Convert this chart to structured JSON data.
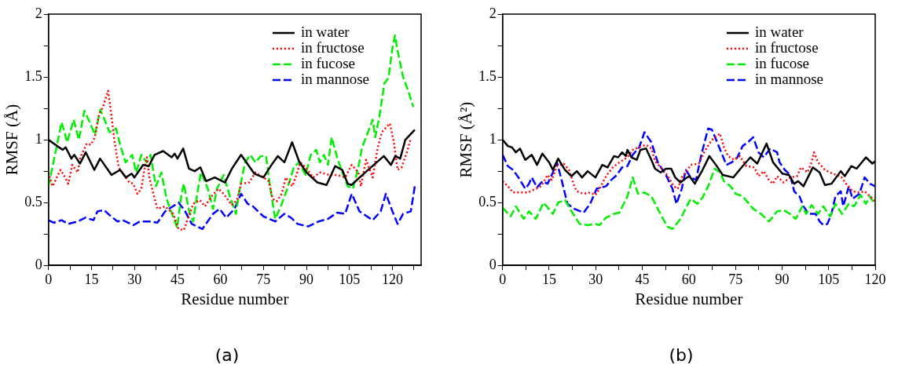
{
  "chart_data": [
    {
      "type": "line",
      "xlabel": "Residue number",
      "ylabel": "RMSF (Å)",
      "annotations": [
        "(a)"
      ],
      "xlim": [
        0,
        130
      ],
      "ylim": [
        0,
        2
      ],
      "xticks": [
        0,
        {
          "value": 7.5,
          "label": null
        },
        15,
        {
          "value": 22.5,
          "label": null
        },
        30,
        {
          "value": 37.5,
          "label": null
        },
        45,
        {
          "value": 52.5,
          "label": null
        },
        60,
        {
          "value": 67.5,
          "label": null
        },
        75,
        {
          "value": 82.5,
          "label": null
        },
        90,
        {
          "value": 97.5,
          "label": null
        },
        105,
        {
          "value": 112.5,
          "label": null
        },
        120,
        {
          "value": 127.5,
          "label": null
        }
      ],
      "yticks": [
        0,
        {
          "value": 0.25,
          "label": null
        },
        0.5,
        {
          "value": 0.75,
          "label": null
        },
        1,
        {
          "value": 1.25,
          "label": null
        },
        1.5,
        {
          "value": 1.75,
          "label": null
        },
        2
      ],
      "grid": false,
      "legend": "top right",
      "marker": "none",
      "series": [
        {
          "name": "in water",
          "color": "#000000",
          "line_style": "solid",
          "x": [
            0,
            3,
            5,
            6,
            8,
            9,
            11,
            13,
            16,
            18,
            22,
            25,
            27,
            29,
            30,
            33,
            35,
            37,
            40,
            43,
            44,
            45,
            47,
            49,
            51,
            53,
            55,
            58,
            61.6,
            64,
            67.2,
            71.8,
            75,
            77.8,
            80,
            82.3,
            85,
            87.4,
            90,
            93.8,
            97,
            100,
            102.5,
            104.4,
            105.7,
            110,
            113.5,
            117,
            119.5,
            121,
            122.7,
            124.5,
            127.8
          ],
          "values": [
            1.0,
            0.95,
            0.92,
            0.94,
            0.85,
            0.88,
            0.81,
            0.9,
            0.76,
            0.85,
            0.72,
            0.76,
            0.7,
            0.73,
            0.7,
            0.8,
            0.79,
            0.88,
            0.91,
            0.86,
            0.89,
            0.85,
            0.93,
            0.77,
            0.75,
            0.78,
            0.67,
            0.7,
            0.66,
            0.77,
            0.88,
            0.73,
            0.7,
            0.8,
            0.87,
            0.82,
            0.98,
            0.83,
            0.74,
            0.66,
            0.64,
            0.79,
            0.76,
            0.65,
            0.64,
            0.73,
            0.8,
            0.87,
            0.8,
            0.87,
            0.85,
            1.0,
            1.08
          ]
        },
        {
          "name": "in fructose",
          "color": "#ff0000",
          "line_style": "dotted",
          "x": [
            0,
            1.4,
            4.2,
            5.6,
            6.9,
            8.3,
            10.2,
            11.1,
            13.4,
            14.8,
            16.2,
            17.6,
            19,
            20.8,
            21.8,
            23.1,
            24.5,
            26.4,
            28.2,
            29.6,
            31,
            32.4,
            33.3,
            34.3,
            35.2,
            36.6,
            38,
            40.7,
            43.5,
            45.4,
            47.2,
            48.6,
            50.5,
            52.8,
            54.6,
            56.9,
            59.3,
            61.1,
            63.9,
            65.8,
            67.2,
            70,
            72.2,
            75,
            76.8,
            78.2,
            79.6,
            81.4,
            82.8,
            85.1,
            86.5,
            87.9,
            89.7,
            92.4,
            94.7,
            98,
            100.7,
            103.5,
            105.8,
            108.1,
            109,
            110.8,
            113.1,
            114.9,
            116.3,
            119.1,
            120.5,
            121.8,
            123.2,
            125,
            126.4
          ],
          "values": [
            0.74,
            0.63,
            0.76,
            0.71,
            0.65,
            0.8,
            0.74,
            0.86,
            0.97,
            0.96,
            1.02,
            1.2,
            1.26,
            1.39,
            1.22,
            0.98,
            0.78,
            0.72,
            0.66,
            0.65,
            0.57,
            0.61,
            0.74,
            0.86,
            0.7,
            0.57,
            0.45,
            0.47,
            0.41,
            0.29,
            0.28,
            0.37,
            0.49,
            0.52,
            0.47,
            0.55,
            0.61,
            0.57,
            0.48,
            0.52,
            0.65,
            0.66,
            0.74,
            0.7,
            0.67,
            0.53,
            0.51,
            0.57,
            0.7,
            0.63,
            0.72,
            0.82,
            0.78,
            0.7,
            0.74,
            0.72,
            0.72,
            0.7,
            0.8,
            0.74,
            0.63,
            0.84,
            0.7,
            0.94,
            1.06,
            1.13,
            0.98,
            0.76,
            0.78,
            0.9,
            1.01
          ]
        },
        {
          "name": "in fucose",
          "color": "#00ee00",
          "line_style": "dashed",
          "x": [
            0,
            1.9,
            4.6,
            6.5,
            8.8,
            10.6,
            12.5,
            14.4,
            16.2,
            18.1,
            19.9,
            21.3,
            23.6,
            25,
            26.9,
            29.2,
            30.6,
            32.4,
            34.3,
            35.6,
            37.5,
            39.4,
            41.2,
            43.1,
            44.9,
            46.3,
            47.2,
            49.1,
            50.5,
            51.9,
            53.2,
            55.6,
            57.4,
            58.8,
            61.1,
            63,
            65.4,
            66.7,
            68.6,
            70.4,
            72.2,
            74.1,
            75.9,
            77.3,
            79.1,
            81.4,
            83.3,
            85.6,
            87.4,
            89.7,
            91.5,
            93.4,
            94.7,
            96.1,
            97.5,
            98.8,
            100.7,
            102.5,
            104.4,
            106.2,
            108.1,
            109.4,
            110.8,
            113.1,
            114,
            115.4,
            117.2,
            118.6,
            120,
            120.9,
            121.8,
            123.7,
            125.5,
            127.3
          ],
          "values": [
            0.63,
            0.84,
            1.14,
            0.98,
            1.16,
            1.0,
            1.23,
            1.14,
            1.04,
            1.24,
            1.14,
            1.06,
            1.09,
            0.96,
            0.82,
            0.88,
            0.74,
            0.88,
            0.82,
            0.88,
            0.63,
            0.74,
            0.53,
            0.41,
            0.3,
            0.55,
            0.65,
            0.43,
            0.35,
            0.57,
            0.74,
            0.61,
            0.45,
            0.61,
            0.72,
            0.57,
            0.41,
            0.61,
            0.82,
            0.88,
            0.82,
            0.87,
            0.87,
            0.63,
            0.37,
            0.49,
            0.61,
            0.78,
            0.82,
            0.72,
            0.88,
            0.92,
            0.82,
            0.88,
            0.8,
            1.02,
            0.86,
            0.74,
            0.63,
            0.61,
            0.78,
            0.94,
            1.02,
            1.16,
            1.02,
            1.18,
            1.45,
            1.49,
            1.73,
            1.83,
            1.71,
            1.5,
            1.39,
            1.26
          ]
        },
        {
          "name": "in mannose",
          "color": "#0000ff",
          "line_style": "dashed",
          "x": [
            0,
            1.9,
            4.6,
            6.9,
            10.2,
            12.9,
            15.7,
            17.1,
            19.4,
            21.8,
            24.1,
            25.9,
            29.6,
            31.9,
            35.2,
            38,
            40.7,
            45.4,
            47.7,
            50,
            53.7,
            57.4,
            59.7,
            62,
            64.9,
            67.2,
            69.5,
            71.3,
            75,
            79.1,
            82.3,
            84.6,
            86.9,
            90.6,
            94.3,
            97.5,
            100.7,
            103.5,
            105.8,
            108.5,
            113.1,
            115.9,
            117.7,
            120,
            121.8,
            123.7,
            126.4,
            127.8
          ],
          "values": [
            0.36,
            0.34,
            0.36,
            0.33,
            0.35,
            0.38,
            0.36,
            0.43,
            0.44,
            0.39,
            0.35,
            0.36,
            0.32,
            0.35,
            0.35,
            0.34,
            0.43,
            0.5,
            0.43,
            0.33,
            0.29,
            0.41,
            0.45,
            0.38,
            0.45,
            0.57,
            0.49,
            0.47,
            0.39,
            0.35,
            0.41,
            0.38,
            0.33,
            0.31,
            0.35,
            0.37,
            0.42,
            0.41,
            0.57,
            0.43,
            0.36,
            0.43,
            0.57,
            0.43,
            0.33,
            0.41,
            0.43,
            0.63
          ]
        }
      ]
    },
    {
      "type": "line",
      "xlabel": "Residue number",
      "ylabel": "RMSF (Å²)",
      "annotations": [
        "(b)"
      ],
      "xlim": [
        0,
        120
      ],
      "ylim": [
        0,
        2
      ],
      "xticks": [
        0,
        {
          "value": 7.5,
          "label": null
        },
        15,
        {
          "value": 22.5,
          "label": null
        },
        30,
        {
          "value": 37.5,
          "label": null
        },
        45,
        {
          "value": 52.5,
          "label": null
        },
        60,
        {
          "value": 67.5,
          "label": null
        },
        75,
        {
          "value": 82.5,
          "label": null
        },
        90,
        {
          "value": 97.5,
          "label": null
        },
        105,
        {
          "value": 112.5,
          "label": null
        },
        120
      ],
      "yticks": [
        0,
        {
          "value": 0.25,
          "label": null
        },
        0.5,
        {
          "value": 0.75,
          "label": null
        },
        1,
        {
          "value": 1.25,
          "label": null
        },
        1.5,
        {
          "value": 1.75,
          "label": null
        },
        2
      ],
      "grid": false,
      "legend": "top right",
      "marker": "none",
      "series": [
        {
          "name": "in water",
          "color": "#000000",
          "line_style": "solid",
          "x": [
            0,
            1.7,
            3,
            4.3,
            5.6,
            7.3,
            9.4,
            11.1,
            12.8,
            15,
            16.2,
            17.9,
            20.1,
            22.2,
            23.9,
            25.6,
            27.4,
            29.9,
            32.1,
            33.8,
            35.9,
            37.2,
            38.5,
            39.7,
            40.2,
            41.5,
            43.2,
            44.4,
            46.2,
            47.9,
            49.1,
            50.9,
            52.6,
            54.3,
            55.6,
            57.3,
            59.4,
            60.2,
            61.9,
            64.4,
            66.6,
            68.7,
            70.9,
            74.3,
            77.3,
            79.8,
            82,
            85,
            87.1,
            90.1,
            92.2,
            93.9,
            95.2,
            96.9,
            99.9,
            102.1,
            103.8,
            105.9,
            108.9,
            110.2,
            112.3,
            114,
            117,
            119.1,
            120
          ],
          "values": [
            1.0,
            0.95,
            0.94,
            0.9,
            0.93,
            0.84,
            0.88,
            0.8,
            0.89,
            0.82,
            0.76,
            0.85,
            0.76,
            0.71,
            0.75,
            0.7,
            0.75,
            0.7,
            0.8,
            0.78,
            0.87,
            0.86,
            0.9,
            0.87,
            0.92,
            0.86,
            0.84,
            0.92,
            0.93,
            0.84,
            0.77,
            0.74,
            0.77,
            0.77,
            0.7,
            0.66,
            0.7,
            0.71,
            0.65,
            0.76,
            0.87,
            0.8,
            0.72,
            0.7,
            0.79,
            0.86,
            0.81,
            0.97,
            0.82,
            0.73,
            0.72,
            0.65,
            0.67,
            0.63,
            0.78,
            0.74,
            0.64,
            0.65,
            0.75,
            0.71,
            0.79,
            0.77,
            0.86,
            0.81,
            0.83
          ]
        },
        {
          "name": "in fructose",
          "color": "#ff0000",
          "line_style": "dotted",
          "x": [
            0,
            1.7,
            3.4,
            6,
            8.1,
            10.7,
            12.4,
            14.5,
            15.8,
            17.5,
            19.7,
            21.4,
            23.1,
            23.9,
            26.1,
            28.2,
            29.9,
            31.2,
            33.3,
            35.5,
            37.6,
            40.2,
            41.9,
            44,
            46.2,
            47.9,
            49.1,
            50.9,
            53,
            55.1,
            56.4,
            57.7,
            59,
            60.6,
            63.2,
            64.9,
            66.6,
            67.9,
            70,
            71.3,
            72.6,
            74.7,
            76.4,
            78.5,
            81.1,
            82.4,
            84.1,
            85.8,
            87.1,
            88.4,
            90.5,
            92.6,
            94.8,
            96.1,
            98.2,
            99.5,
            100.3,
            101.6,
            103.8,
            106.3,
            108.9,
            110.6,
            112.7,
            114.9,
            116.6,
            118.3,
            120
          ],
          "values": [
            0.67,
            0.63,
            0.58,
            0.58,
            0.58,
            0.61,
            0.63,
            0.72,
            0.68,
            0.79,
            0.81,
            0.76,
            0.63,
            0.59,
            0.57,
            0.58,
            0.56,
            0.61,
            0.71,
            0.78,
            0.82,
            0.86,
            0.92,
            0.94,
            0.96,
            0.93,
            0.83,
            0.78,
            0.72,
            0.63,
            0.61,
            0.7,
            0.74,
            0.8,
            0.81,
            0.9,
            0.97,
            1.01,
            1.05,
            0.94,
            0.87,
            0.84,
            0.87,
            0.79,
            0.78,
            0.71,
            0.75,
            0.68,
            0.65,
            0.71,
            0.66,
            0.7,
            0.71,
            0.78,
            0.74,
            0.82,
            0.9,
            0.82,
            0.76,
            0.73,
            0.71,
            0.65,
            0.59,
            0.58,
            0.59,
            0.55,
            0.51
          ]
        },
        {
          "name": "in fucose",
          "color": "#00ee00",
          "line_style": "dashed",
          "x": [
            0,
            2.6,
            4.3,
            6.8,
            8.5,
            10.7,
            13.2,
            16.2,
            17.9,
            20.1,
            22.2,
            24.8,
            27.4,
            29.9,
            31.2,
            33.3,
            35.9,
            37.6,
            40.2,
            41.9,
            43.6,
            45.7,
            47.9,
            50.4,
            53,
            54.7,
            57.3,
            58.9,
            60.6,
            62.7,
            64.4,
            66.2,
            68.3,
            70,
            71.3,
            73.4,
            75.1,
            77.3,
            79,
            80.7,
            83.2,
            85.8,
            88.4,
            90.5,
            92.6,
            94.4,
            96.5,
            97.8,
            99.5,
            101.6,
            103.3,
            105.5,
            107.2,
            109.3,
            111.5,
            113.2,
            115.3,
            117,
            118.3,
            120
          ],
          "values": [
            0.46,
            0.39,
            0.47,
            0.37,
            0.43,
            0.37,
            0.5,
            0.41,
            0.5,
            0.52,
            0.43,
            0.33,
            0.32,
            0.33,
            0.32,
            0.38,
            0.41,
            0.42,
            0.55,
            0.7,
            0.57,
            0.58,
            0.55,
            0.43,
            0.31,
            0.29,
            0.37,
            0.45,
            0.53,
            0.49,
            0.54,
            0.63,
            0.77,
            0.74,
            0.67,
            0.63,
            0.57,
            0.55,
            0.5,
            0.45,
            0.41,
            0.35,
            0.43,
            0.44,
            0.41,
            0.37,
            0.47,
            0.41,
            0.48,
            0.41,
            0.47,
            0.39,
            0.49,
            0.41,
            0.49,
            0.47,
            0.56,
            0.49,
            0.55,
            0.48
          ]
        },
        {
          "name": "in mannose",
          "color": "#0000ff",
          "line_style": "dashed",
          "x": [
            0,
            1.7,
            3.4,
            5.1,
            7.3,
            8.5,
            9.4,
            11.1,
            12.8,
            14.5,
            16.2,
            17.5,
            18.8,
            20.9,
            23.1,
            26.1,
            28.2,
            30.3,
            33.3,
            35,
            36.8,
            38.5,
            40.2,
            41.9,
            44,
            45.7,
            47.9,
            50,
            52.6,
            54.7,
            56,
            57.7,
            59,
            60.6,
            62.3,
            64,
            66.2,
            67.4,
            69.1,
            70.4,
            72.1,
            73.8,
            75.6,
            77.3,
            79,
            80.7,
            82.4,
            84.1,
            86.2,
            88.4,
            89.2,
            90.9,
            92.6,
            93.9,
            95.6,
            96.9,
            98.6,
            100.8,
            102.1,
            103.3,
            104.6,
            105.9,
            107.2,
            108.9,
            109.7,
            111.5,
            112.7,
            114.9,
            116.6,
            118.3,
            120
          ],
          "values": [
            0.88,
            0.79,
            0.76,
            0.7,
            0.61,
            0.65,
            0.7,
            0.62,
            0.67,
            0.65,
            0.74,
            0.82,
            0.7,
            0.49,
            0.45,
            0.42,
            0.49,
            0.61,
            0.63,
            0.68,
            0.72,
            0.78,
            0.79,
            0.88,
            0.94,
            1.06,
            0.98,
            0.82,
            0.72,
            0.61,
            0.49,
            0.61,
            0.76,
            0.7,
            0.68,
            0.88,
            1.09,
            1.08,
            0.98,
            0.9,
            0.8,
            0.82,
            0.86,
            0.95,
            0.98,
            1.02,
            0.9,
            0.86,
            0.93,
            0.9,
            0.82,
            0.76,
            0.72,
            0.59,
            0.55,
            0.47,
            0.41,
            0.41,
            0.35,
            0.32,
            0.33,
            0.41,
            0.55,
            0.59,
            0.47,
            0.63,
            0.53,
            0.57,
            0.7,
            0.65,
            0.63
          ]
        }
      ]
    }
  ]
}
